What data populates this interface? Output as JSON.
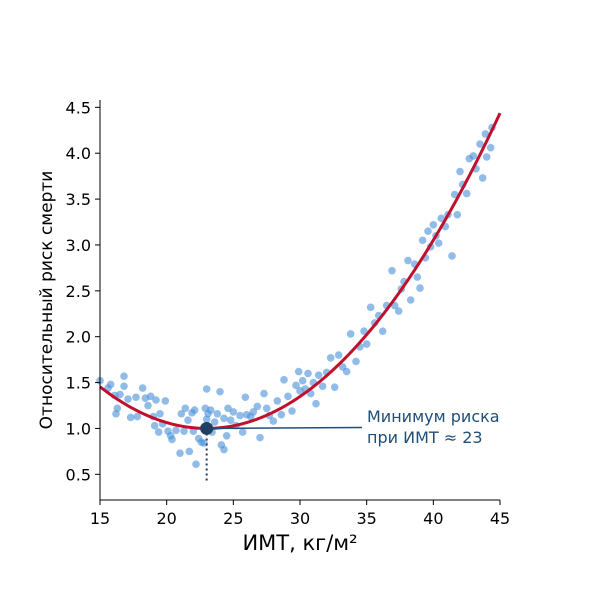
{
  "chart_data": {
    "type": "scatter",
    "title": "",
    "xlabel": "ИМТ, кг/м²",
    "ylabel": "Относительный риск смерти",
    "xlim": [
      15,
      45
    ],
    "ylim": [
      0.22,
      4.58
    ],
    "xticks": [
      15,
      20,
      25,
      30,
      35,
      40,
      45
    ],
    "yticks": [
      0.5,
      1.0,
      1.5,
      2.0,
      2.5,
      3.0,
      3.5,
      4.0,
      4.5
    ],
    "x_tick_labels": [
      "15",
      "20",
      "25",
      "30",
      "35",
      "40",
      "45"
    ],
    "y_tick_labels": [
      "0.5",
      "1.0",
      "1.5",
      "2.0",
      "2.5",
      "3.0",
      "3.5",
      "4.0",
      "4.5"
    ],
    "grid": false,
    "fit_curve": {
      "type": "quadratic",
      "vertex_x": 23,
      "vertex_y": 1.0,
      "a": 0.0071,
      "color": "#c0102c"
    },
    "minimum_point": {
      "x": 23,
      "y": 1.0,
      "color": "#1f3f63"
    },
    "annotation": {
      "text_line1": "Минимум риска",
      "text_line2": "при ИМТ ≈ 23",
      "color": "#1f4e79"
    },
    "scatter_color": "#4a90d9",
    "series": [
      {
        "values": [
          [
            15.0,
            1.52
          ],
          [
            15.6,
            1.44
          ],
          [
            15.8,
            1.48
          ],
          [
            16.1,
            1.36
          ],
          [
            16.2,
            1.16
          ],
          [
            16.3,
            1.22
          ],
          [
            16.5,
            1.37
          ],
          [
            16.8,
            1.46
          ],
          [
            16.8,
            1.57
          ],
          [
            17.1,
            1.32
          ],
          [
            17.3,
            1.12
          ],
          [
            17.7,
            1.34
          ],
          [
            17.8,
            1.13
          ],
          [
            18.2,
            1.44
          ],
          [
            18.4,
            1.33
          ],
          [
            18.6,
            1.25
          ],
          [
            18.8,
            1.35
          ],
          [
            19.0,
            1.13
          ],
          [
            19.1,
            1.03
          ],
          [
            19.2,
            1.31
          ],
          [
            19.4,
            0.96
          ],
          [
            19.5,
            1.16
          ],
          [
            19.7,
            1.05
          ],
          [
            19.9,
            1.3
          ],
          [
            20.1,
            0.97
          ],
          [
            20.3,
            0.92
          ],
          [
            20.4,
            0.88
          ],
          [
            20.7,
            0.98
          ],
          [
            21.0,
            0.73
          ],
          [
            21.1,
            1.16
          ],
          [
            21.3,
            0.97
          ],
          [
            21.4,
            1.22
          ],
          [
            21.6,
            1.09
          ],
          [
            21.7,
            0.75
          ],
          [
            21.9,
            1.17
          ],
          [
            22.0,
            0.97
          ],
          [
            22.1,
            1.2
          ],
          [
            22.2,
            0.61
          ],
          [
            22.4,
            0.89
          ],
          [
            22.6,
            0.85
          ],
          [
            22.8,
            0.84
          ],
          [
            22.9,
            1.22
          ],
          [
            23.0,
            1.43
          ],
          [
            23.0,
            1.1
          ],
          [
            23.1,
            1.16
          ],
          [
            23.3,
            1.2
          ],
          [
            23.4,
            0.96
          ],
          [
            23.6,
            1.07
          ],
          [
            23.8,
            1.16
          ],
          [
            24.0,
            1.4
          ],
          [
            24.1,
            0.82
          ],
          [
            24.3,
            0.77
          ],
          [
            24.3,
            1.11
          ],
          [
            24.5,
            0.92
          ],
          [
            24.6,
            1.22
          ],
          [
            24.8,
            1.09
          ],
          [
            25.0,
            1.18
          ],
          [
            25.2,
            1.03
          ],
          [
            25.5,
            1.14
          ],
          [
            25.7,
            0.96
          ],
          [
            25.9,
            1.34
          ],
          [
            26.0,
            1.15
          ],
          [
            26.3,
            1.13
          ],
          [
            26.5,
            1.18
          ],
          [
            26.8,
            1.24
          ],
          [
            27.0,
            0.9
          ],
          [
            27.3,
            1.38
          ],
          [
            27.5,
            1.22
          ],
          [
            27.7,
            1.14
          ],
          [
            28.0,
            1.08
          ],
          [
            28.3,
            1.3
          ],
          [
            28.6,
            1.15
          ],
          [
            28.8,
            1.53
          ],
          [
            29.1,
            1.35
          ],
          [
            29.4,
            1.19
          ],
          [
            29.7,
            1.47
          ],
          [
            29.9,
            1.62
          ],
          [
            30.0,
            1.41
          ],
          [
            30.2,
            1.52
          ],
          [
            30.4,
            1.43
          ],
          [
            30.6,
            1.6
          ],
          [
            30.8,
            1.38
          ],
          [
            31.0,
            1.5
          ],
          [
            31.2,
            1.27
          ],
          [
            31.4,
            1.58
          ],
          [
            31.7,
            1.46
          ],
          [
            32.0,
            1.61
          ],
          [
            32.3,
            1.77
          ],
          [
            32.6,
            1.45
          ],
          [
            32.9,
            1.8
          ],
          [
            33.2,
            1.67
          ],
          [
            33.5,
            1.62
          ],
          [
            33.8,
            2.03
          ],
          [
            34.2,
            1.73
          ],
          [
            34.5,
            1.89
          ],
          [
            34.8,
            2.06
          ],
          [
            35.0,
            1.92
          ],
          [
            35.3,
            2.32
          ],
          [
            35.6,
            2.15
          ],
          [
            35.9,
            2.23
          ],
          [
            36.2,
            2.06
          ],
          [
            36.5,
            2.34
          ],
          [
            36.9,
            2.72
          ],
          [
            37.1,
            2.34
          ],
          [
            37.4,
            2.28
          ],
          [
            37.6,
            2.52
          ],
          [
            37.8,
            2.6
          ],
          [
            38.1,
            2.83
          ],
          [
            38.3,
            2.4
          ],
          [
            38.6,
            2.79
          ],
          [
            38.8,
            2.65
          ],
          [
            39.0,
            2.53
          ],
          [
            39.2,
            3.05
          ],
          [
            39.4,
            2.86
          ],
          [
            39.6,
            3.15
          ],
          [
            39.8,
            2.98
          ],
          [
            40.0,
            3.22
          ],
          [
            40.2,
            3.1
          ],
          [
            40.4,
            3.02
          ],
          [
            40.6,
            3.29
          ],
          [
            40.9,
            3.2
          ],
          [
            41.1,
            3.33
          ],
          [
            41.4,
            2.88
          ],
          [
            41.6,
            3.55
          ],
          [
            41.8,
            3.33
          ],
          [
            42.0,
            3.8
          ],
          [
            42.2,
            3.66
          ],
          [
            42.5,
            3.56
          ],
          [
            42.7,
            3.94
          ],
          [
            43.0,
            3.97
          ],
          [
            43.2,
            3.83
          ],
          [
            43.5,
            4.1
          ],
          [
            43.7,
            3.73
          ],
          [
            43.9,
            4.21
          ],
          [
            44.0,
            3.96
          ],
          [
            44.3,
            4.06
          ],
          [
            44.4,
            4.28
          ]
        ]
      }
    ]
  }
}
